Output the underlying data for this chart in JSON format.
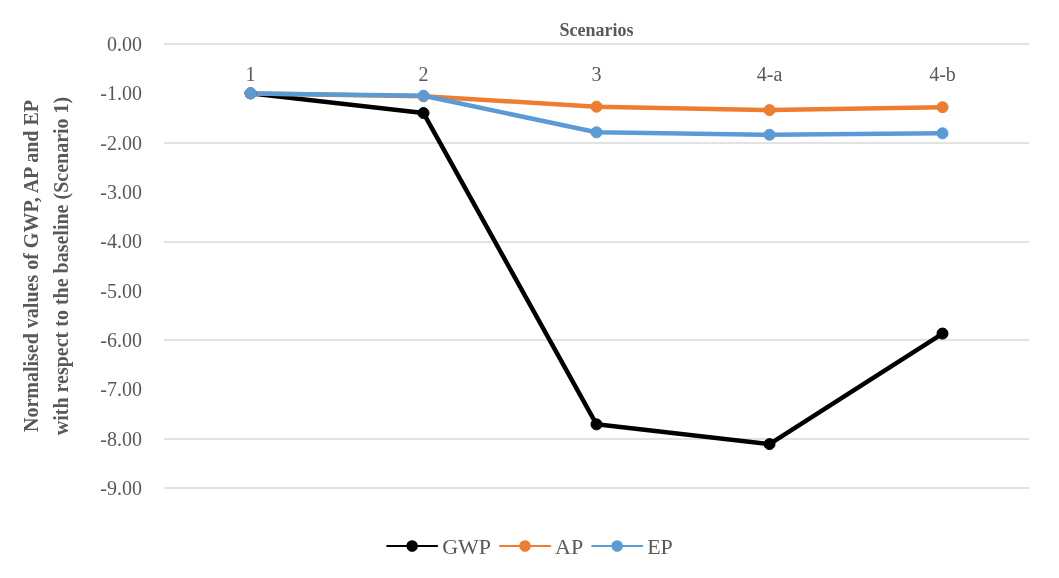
{
  "chart_data": {
    "type": "line",
    "xlabel": "Scenarios",
    "ylabel": "Normalised values of GWP, AP and EP\nwith respect to the baseline (Scenario 1)",
    "categories": [
      "1",
      "2",
      "3",
      "4-a",
      "4-b"
    ],
    "series": [
      {
        "name": "GWP",
        "color": "#000000",
        "values": [
          -1.0,
          -1.4,
          -7.71,
          -8.11,
          -5.87
        ]
      },
      {
        "name": "AP",
        "color": "#ed7d31",
        "values": [
          -1.0,
          -1.06,
          -1.27,
          -1.34,
          -1.28
        ]
      },
      {
        "name": "EP",
        "color": "#5b9bd5",
        "values": [
          -1.0,
          -1.05,
          -1.79,
          -1.84,
          -1.81
        ]
      }
    ],
    "ylim": [
      -9,
      0
    ],
    "yticks": [
      {
        "value": 0,
        "label": "0.00"
      },
      {
        "value": -1,
        "label": "-1.00"
      },
      {
        "value": -2,
        "label": "-2.00"
      },
      {
        "value": -3,
        "label": "-3.00"
      },
      {
        "value": -4,
        "label": "-4.00"
      },
      {
        "value": -5,
        "label": "-5.00"
      },
      {
        "value": -6,
        "label": "-6.00"
      },
      {
        "value": -7,
        "label": "-7.00"
      },
      {
        "value": -8,
        "label": "-8.00"
      },
      {
        "value": -9,
        "label": "-9.00"
      }
    ],
    "grid": "y",
    "legend": "bottom",
    "marker": "circle",
    "line_style": "solid"
  }
}
